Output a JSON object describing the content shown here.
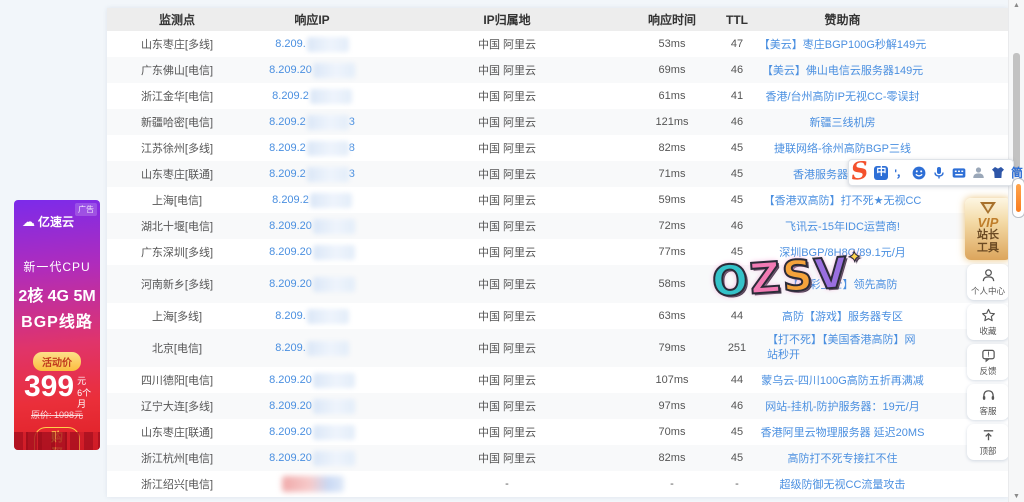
{
  "table": {
    "headers": [
      "监测点",
      "响应IP",
      "IP归属地",
      "响应时间",
      "TTL",
      "赞助商"
    ],
    "rows": [
      {
        "point": "山东枣庄[多线]",
        "ip_prefix": "8.209.",
        "ip_suffix": "",
        "location": "中国 阿里云",
        "time": "53ms",
        "ttl": "47",
        "sponsor": "【美云】枣庄BGP100G秒解149元"
      },
      {
        "point": "广东佛山[电信]",
        "ip_prefix": "8.209.20",
        "ip_suffix": "",
        "location": "中国 阿里云",
        "time": "69ms",
        "ttl": "46",
        "sponsor": "【美云】佛山电信云服务器149元"
      },
      {
        "point": "浙江金华[电信]",
        "ip_prefix": "8.209.2",
        "ip_suffix": "",
        "location": "中国 阿里云",
        "time": "61ms",
        "ttl": "41",
        "sponsor": "香港/台州高防IP无视CC-零误封"
      },
      {
        "point": "新疆哈密[电信]",
        "ip_prefix": "8.209.2",
        "ip_suffix": "3",
        "location": "中国 阿里云",
        "time": "121ms",
        "ttl": "46",
        "sponsor": "新疆三线机房"
      },
      {
        "point": "江苏徐州[多线]",
        "ip_prefix": "8.209.2",
        "ip_suffix": "8",
        "location": "中国 阿里云",
        "time": "82ms",
        "ttl": "45",
        "sponsor": "捷联网络-徐州高防BGP三线"
      },
      {
        "point": "山东枣庄[联通]",
        "ip_prefix": "8.209.2",
        "ip_suffix": "3",
        "location": "中国 阿里云",
        "time": "71ms",
        "ttl": "45",
        "sponsor": "香港服务器免费赠送"
      },
      {
        "point": "上海[电信]",
        "ip_prefix": "8.209.2",
        "ip_suffix": "",
        "location": "中国 阿里云",
        "time": "59ms",
        "ttl": "45",
        "sponsor": "【香港双高防】打不死★无视CC"
      },
      {
        "point": "湖北十堰[电信]",
        "ip_prefix": "8.209.20",
        "ip_suffix": "",
        "location": "中国 阿里云",
        "time": "72ms",
        "ttl": "46",
        "sponsor": "飞讯云-15年IDC运营商!"
      },
      {
        "point": "广东深圳[多线]",
        "ip_prefix": "8.209.20",
        "ip_suffix": "",
        "location": "中国 阿里云",
        "time": "77ms",
        "ttl": "45",
        "sponsor": "深圳BGP/8H8G/89.1元/月"
      },
      {
        "point": "河南新乡[多线]",
        "ip_prefix": "8.209.20",
        "ip_suffix": "",
        "location": "中国 阿里云",
        "time": "58ms",
        "ttl": "",
        "sponsor": "【云彩卫士】领先高防",
        "tall": true
      },
      {
        "point": "上海[多线]",
        "ip_prefix": "8.209.",
        "ip_suffix": "",
        "location": "中国 阿里云",
        "time": "63ms",
        "ttl": "44",
        "sponsor": "高防【游戏】服务器专区"
      },
      {
        "point": "北京[电信]",
        "ip_prefix": "8.209.",
        "ip_suffix": "",
        "location": "中国 阿里云",
        "time": "79ms",
        "ttl": "251",
        "sponsor": "【打不死】【美国香港高防】网站秒开",
        "tall": true,
        "wrap": true
      },
      {
        "point": "四川德阳[电信]",
        "ip_prefix": "8.209.20",
        "ip_suffix": "",
        "location": "中国 阿里云",
        "time": "107ms",
        "ttl": "44",
        "sponsor": "蒙乌云-四川100G高防五折再满减"
      },
      {
        "point": "辽宁大连[多线]",
        "ip_prefix": "8.209.20",
        "ip_suffix": "",
        "location": "中国 阿里云",
        "time": "97ms",
        "ttl": "46",
        "sponsor": "网站-挂机-防护服务器：19元/月"
      },
      {
        "point": "山东枣庄[联通]",
        "ip_prefix": "8.209.20",
        "ip_suffix": "",
        "location": "中国 阿里云",
        "time": "70ms",
        "ttl": "45",
        "sponsor": "香港阿里云物理服务器 延迟20MS"
      },
      {
        "point": "浙江杭州[电信]",
        "ip_prefix": "8.209.20",
        "ip_suffix": "",
        "location": "中国 阿里云",
        "time": "82ms",
        "ttl": "45",
        "sponsor": "高防打不死专接扛不住"
      },
      {
        "point": "浙江绍兴[电信]",
        "ip_prefix": "",
        "ip_suffix": "",
        "mask": "red",
        "location": "-",
        "time": "-",
        "ttl": "-",
        "sponsor": "超级防御无视CC流量攻击"
      }
    ]
  },
  "ad": {
    "tag": "广告",
    "brand": "亿速云",
    "cloud_icon": "☁",
    "line1": "新一代CPU",
    "line2": "2核 4G 5M",
    "line3": "BGP线路",
    "price_label": "活动价",
    "price": "399",
    "unit": "元",
    "term": "6个月",
    "original": "原价: 1098元",
    "buy": "购买"
  },
  "vip_badge": {
    "word": "VIP",
    "cn1": "站长",
    "cn2": "工具"
  },
  "side_tools": [
    {
      "label": "个人中心",
      "icon": "user-icon"
    },
    {
      "label": "收藏",
      "icon": "star-icon"
    },
    {
      "label": "反馈",
      "icon": "feedback-icon"
    },
    {
      "label": "客服",
      "icon": "headset-icon"
    },
    {
      "label": "顶部",
      "icon": "back-to-top-icon"
    }
  ],
  "ime_toolbar": {
    "logo": "S",
    "zh": "中",
    "punc": "'，",
    "jian": "简"
  },
  "watermark": {
    "l1": "O",
    "l2": "Z",
    "l3": "S",
    "l4": "V",
    "spark": "✦"
  },
  "scrollbar": {
    "up": "▲",
    "down": "▼"
  }
}
